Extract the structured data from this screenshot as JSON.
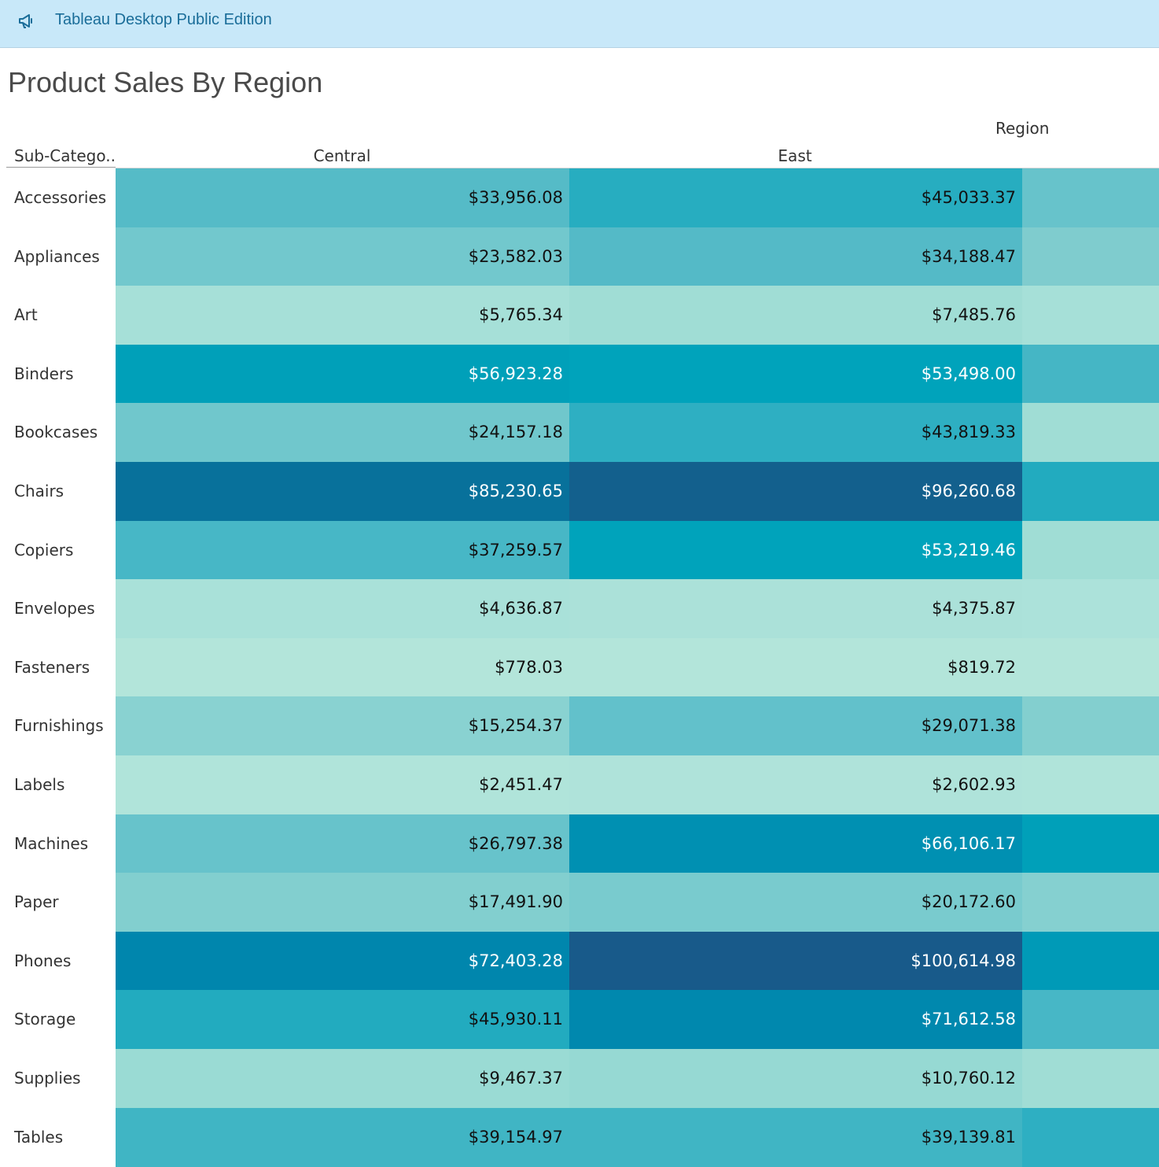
{
  "app": {
    "icon": "megaphone-icon",
    "name": "Tableau Desktop Public Edition"
  },
  "sheet": {
    "title": "Product Sales By Region",
    "column_group_header": "Region",
    "row_header": "Sub-Catego..",
    "columns": [
      "Central",
      "East"
    ]
  },
  "rows": [
    {
      "label": "Accessories",
      "central": "$33,956.08",
      "east": "$45,033.37",
      "colors": [
        "#55bbc7",
        "#27adc0",
        "#67c3cb"
      ],
      "text_colors": [
        "#111111",
        "#111111"
      ]
    },
    {
      "label": "Appliances",
      "central": "$23,582.03",
      "east": "$34,188.47",
      "colors": [
        "#72c8cd",
        "#54bac7",
        "#7fccce"
      ],
      "text_colors": [
        "#111111",
        "#111111"
      ]
    },
    {
      "label": "Art",
      "central": "$5,765.34",
      "east": "$7,485.76",
      "colors": [
        "#a6e0d8",
        "#a0ddd5",
        "#a6e0d8"
      ],
      "text_colors": [
        "#111111",
        "#111111"
      ]
    },
    {
      "label": "Binders",
      "central": "$56,923.28",
      "east": "$53,498.00",
      "colors": [
        "#00a0b9",
        "#00a3bb",
        "#45b6c5"
      ],
      "text_colors": [
        "#ffffff",
        "#ffffff"
      ]
    },
    {
      "label": "Bookcases",
      "central": "$24,157.18",
      "east": "$43,819.33",
      "colors": [
        "#70c7cc",
        "#2eafc2",
        "#a0ddd5"
      ],
      "text_colors": [
        "#111111",
        "#111111"
      ]
    },
    {
      "label": "Chairs",
      "central": "$85,230.65",
      "east": "$96,260.68",
      "colors": [
        "#08719b",
        "#13608d",
        "#22abbf"
      ],
      "text_colors": [
        "#ffffff",
        "#ffffff"
      ]
    },
    {
      "label": "Copiers",
      "central": "$37,259.57",
      "east": "$53,219.46",
      "colors": [
        "#47b7c6",
        "#00a3bb",
        "#a0ddd5"
      ],
      "text_colors": [
        "#111111",
        "#ffffff"
      ]
    },
    {
      "label": "Envelopes",
      "central": "$4,636.87",
      "east": "$4,375.87",
      "colors": [
        "#a9e1d9",
        "#abe1d9",
        "#ace2da"
      ],
      "text_colors": [
        "#111111",
        "#111111"
      ]
    },
    {
      "label": "Fasteners",
      "central": "$778.03",
      "east": "$819.72",
      "colors": [
        "#b3e5da",
        "#b3e5da",
        "#b3e5da"
      ],
      "text_colors": [
        "#111111",
        "#111111"
      ]
    },
    {
      "label": "Furnishings",
      "central": "$15,254.37",
      "east": "$29,071.38",
      "colors": [
        "#89d2d1",
        "#62c1cb",
        "#83cfcf"
      ],
      "text_colors": [
        "#111111",
        "#111111"
      ]
    },
    {
      "label": "Labels",
      "central": "$2,451.47",
      "east": "$2,602.93",
      "colors": [
        "#b0e4da",
        "#afe3da",
        "#b0e4da"
      ],
      "text_colors": [
        "#111111",
        "#111111"
      ]
    },
    {
      "label": "Machines",
      "central": "$26,797.38",
      "east": "$66,106.17",
      "colors": [
        "#67c3cb",
        "#0090b2",
        "#00a0b9"
      ],
      "text_colors": [
        "#111111",
        "#ffffff"
      ]
    },
    {
      "label": "Paper",
      "central": "$17,491.90",
      "east": "$20,172.60",
      "colors": [
        "#82cfcf",
        "#79cbce",
        "#85d0d0"
      ],
      "text_colors": [
        "#111111",
        "#111111"
      ]
    },
    {
      "label": "Phones",
      "central": "$72,403.28",
      "east": "$100,614.98",
      "colors": [
        "#0086ad",
        "#185a8a",
        "#009ab7"
      ],
      "text_colors": [
        "#ffffff",
        "#ffffff"
      ]
    },
    {
      "label": "Storage",
      "central": "$45,930.11",
      "east": "$71,612.58",
      "colors": [
        "#22abbf",
        "#0088ae",
        "#47b7c6"
      ],
      "text_colors": [
        "#111111",
        "#ffffff"
      ]
    },
    {
      "label": "Supplies",
      "central": "$9,467.37",
      "east": "$10,760.12",
      "colors": [
        "#9adbd4",
        "#96d9d3",
        "#a0ddd5"
      ],
      "text_colors": [
        "#111111",
        "#111111"
      ]
    },
    {
      "label": "Tables",
      "central": "$39,154.97",
      "east": "$39,139.81",
      "colors": [
        "#40b5c4",
        "#40b5c4",
        "#2eafc2"
      ],
      "text_colors": [
        "#111111",
        "#111111"
      ]
    }
  ]
}
